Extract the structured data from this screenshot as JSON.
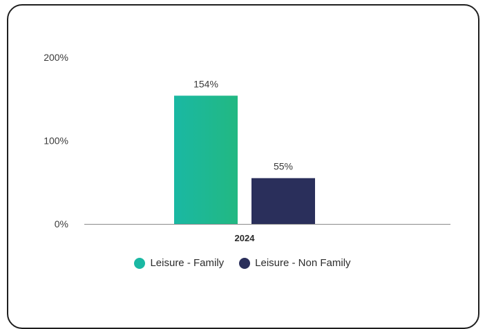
{
  "chart_data": {
    "type": "bar",
    "categories": [
      "2024"
    ],
    "series": [
      {
        "name": "Leisure - Family",
        "values": [
          154
        ],
        "color": "#1ab8a3",
        "color_end": "#22b882"
      },
      {
        "name": "Leisure - Non Family",
        "values": [
          55
        ],
        "color": "#2a2f5b"
      }
    ],
    "ylim": [
      0,
      200
    ],
    "yticks": [
      {
        "value": 0,
        "label": "0%"
      },
      {
        "value": 100,
        "label": "100%"
      },
      {
        "value": 200,
        "label": "200%"
      }
    ],
    "data_labels": [
      "154%",
      "55%"
    ],
    "legend_position": "bottom",
    "grid": false
  }
}
